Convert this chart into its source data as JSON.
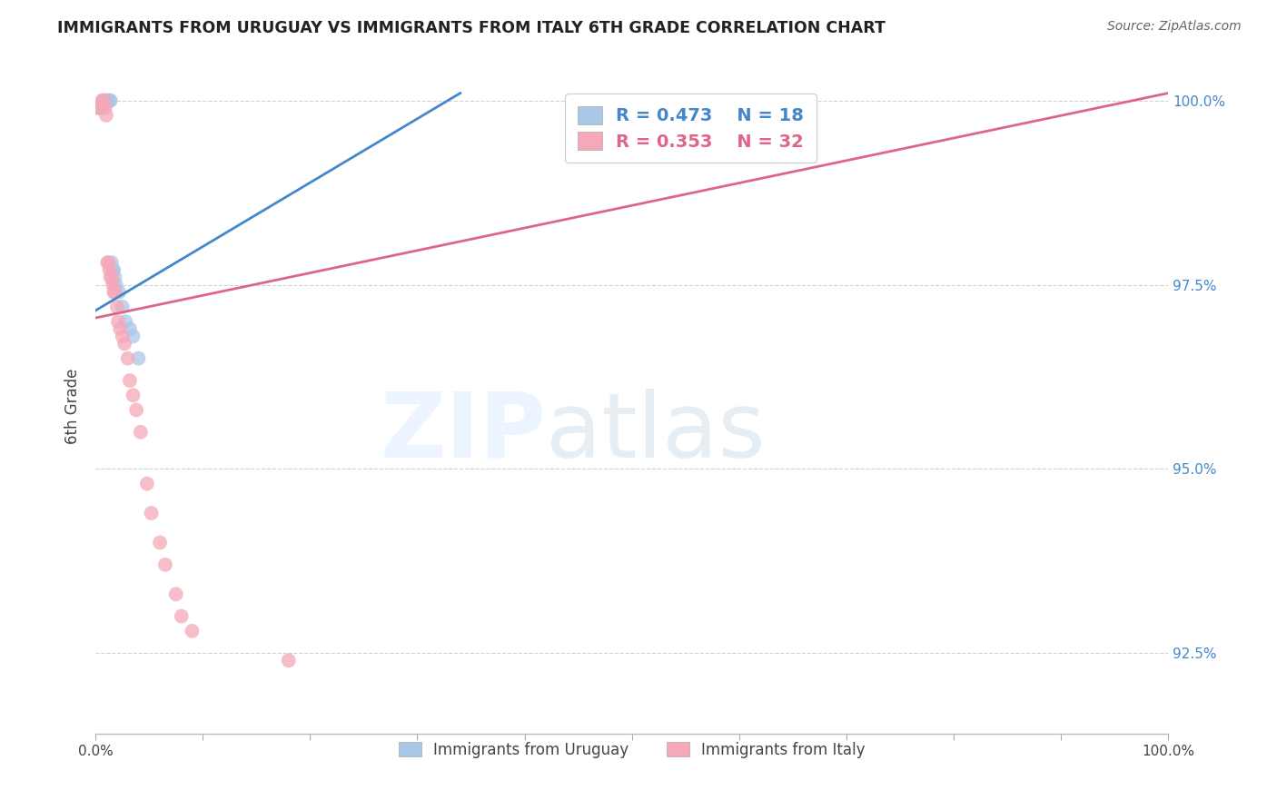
{
  "title": "IMMIGRANTS FROM URUGUAY VS IMMIGRANTS FROM ITALY 6TH GRADE CORRELATION CHART",
  "source": "Source: ZipAtlas.com",
  "ylabel": "6th Grade",
  "xlim": [
    0.0,
    1.0
  ],
  "ylim": [
    0.914,
    1.003
  ],
  "yticks": [
    0.925,
    0.95,
    0.975,
    1.0
  ],
  "ytick_labels": [
    "92.5%",
    "95.0%",
    "97.5%",
    "100.0%"
  ],
  "xticks": [
    0.0,
    0.1,
    0.2,
    0.3,
    0.4,
    0.5,
    0.6,
    0.7,
    0.8,
    0.9,
    1.0
  ],
  "xtick_labels": [
    "0.0%",
    "",
    "",
    "",
    "",
    "",
    "",
    "",
    "",
    "",
    "100.0%"
  ],
  "legend_label1": "Immigrants from Uruguay",
  "legend_label2": "Immigrants from Italy",
  "r1": 0.473,
  "n1": 18,
  "r2": 0.353,
  "n2": 32,
  "color_blue": "#a8c8e8",
  "color_pink": "#f4a8b8",
  "line_color_blue": "#4488cc",
  "line_color_pink": "#dd6688",
  "blue_x": [
    0.002,
    0.007,
    0.009,
    0.01,
    0.012,
    0.013,
    0.014,
    0.015,
    0.016,
    0.017,
    0.018,
    0.019,
    0.022,
    0.025,
    0.028,
    0.032,
    0.035,
    0.04
  ],
  "blue_y": [
    0.999,
    1.0,
    1.0,
    1.0,
    1.0,
    1.0,
    1.0,
    0.978,
    0.977,
    0.977,
    0.976,
    0.975,
    0.974,
    0.972,
    0.97,
    0.969,
    0.968,
    0.965
  ],
  "pink_x": [
    0.003,
    0.005,
    0.006,
    0.008,
    0.009,
    0.01,
    0.011,
    0.012,
    0.013,
    0.014,
    0.015,
    0.016,
    0.017,
    0.018,
    0.02,
    0.021,
    0.023,
    0.025,
    0.027,
    0.03,
    0.032,
    0.035,
    0.038,
    0.042,
    0.048,
    0.052,
    0.06,
    0.065,
    0.075,
    0.08,
    0.09,
    0.18
  ],
  "pink_y": [
    0.999,
    0.999,
    1.0,
    1.0,
    0.999,
    0.998,
    0.978,
    0.978,
    0.977,
    0.976,
    0.976,
    0.975,
    0.974,
    0.974,
    0.972,
    0.97,
    0.969,
    0.968,
    0.967,
    0.965,
    0.962,
    0.96,
    0.958,
    0.955,
    0.948,
    0.944,
    0.94,
    0.937,
    0.933,
    0.93,
    0.928,
    0.924
  ],
  "blue_line_x": [
    0.0,
    0.35
  ],
  "blue_line_y": [
    0.972,
    1.001
  ],
  "pink_line_x": [
    0.0,
    1.0
  ],
  "pink_line_y": [
    0.972,
    1.001
  ]
}
